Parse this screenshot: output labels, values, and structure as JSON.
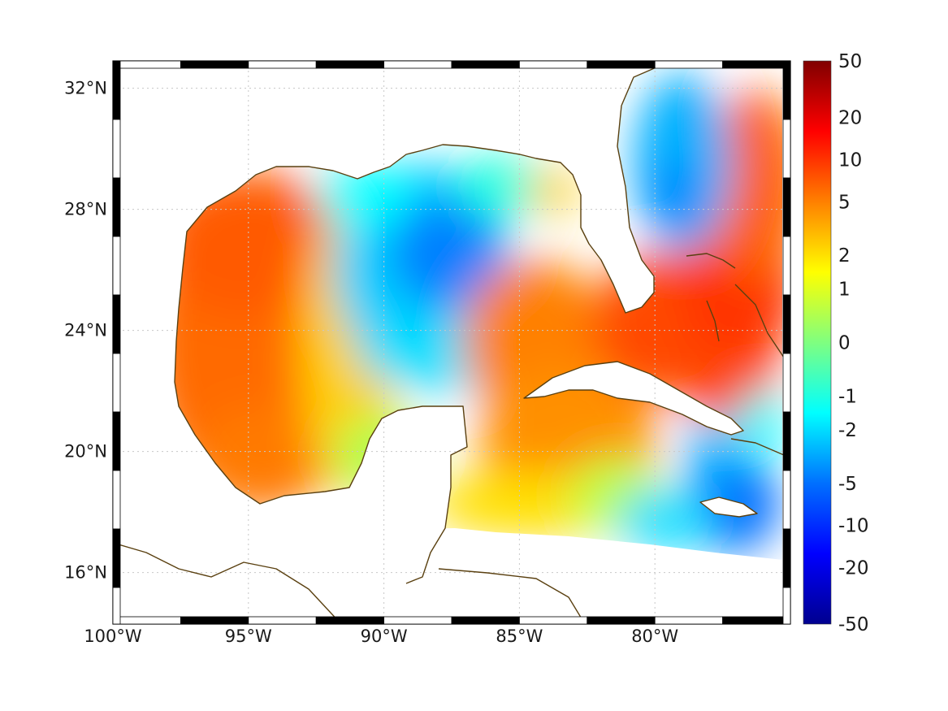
{
  "map": {
    "lon_range": [
      -100,
      -75
    ],
    "lat_range": [
      14.3,
      32.9
    ],
    "x_tick_labels": [
      "100°W",
      "95°W",
      "90°W",
      "85°W",
      "80°W"
    ],
    "y_tick_labels": [
      "32°N",
      "28°N",
      "24°N",
      "20°N",
      "16°N"
    ],
    "x_tick_lons": [
      -100,
      -95,
      -90,
      -85,
      -80
    ],
    "y_tick_lats": [
      32,
      28,
      24,
      20,
      16
    ],
    "grid": true,
    "coastline_color": "#5a4010",
    "frame_style": "alternating black-white border"
  },
  "colorbar": {
    "labels": [
      "50",
      "20",
      "10",
      "5",
      "2",
      "1",
      "0",
      "-1",
      "-2",
      "-5",
      "-10",
      "-20",
      "-50"
    ],
    "colormap": "jet",
    "orientation": "vertical",
    "placement": "right"
  },
  "field": {
    "description_regions": [
      {
        "region": "western Gulf",
        "level": "high positive (~5-10)"
      },
      {
        "region": "central-eastern Gulf (Loop Current area)",
        "level": "negative (~-2 to -5)"
      },
      {
        "region": "Florida Straits / Cuba / Bahamas",
        "level": "high positive (~5-10)"
      },
      {
        "region": "south of Jamaica",
        "level": "negative (~-5)"
      },
      {
        "region": "east of Florida (Atlantic)",
        "level": "negative (~-2 to -5)"
      }
    ]
  }
}
